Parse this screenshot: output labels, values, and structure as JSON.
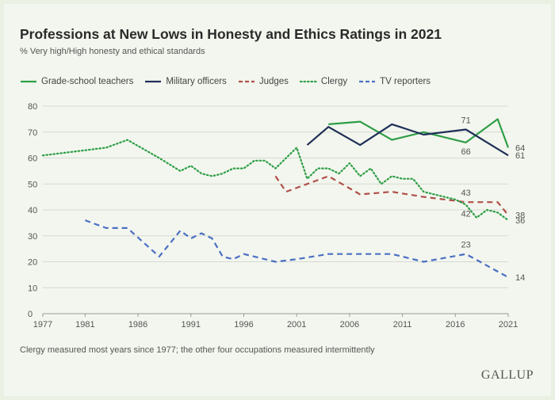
{
  "chart_data": {
    "type": "line",
    "title": "Professions at New Lows in Honesty and Ethics Ratings in 2021",
    "subtitle": "% Very high/High honesty and ethical standards",
    "footnote": "Clergy measured most years since 1977; the other four occupations measured intermittently",
    "source": "GALLUP",
    "xlim": [
      1977,
      2021
    ],
    "ylim": [
      0,
      80
    ],
    "x_ticks": [
      1977,
      1981,
      1986,
      1991,
      1996,
      2001,
      2006,
      2011,
      2016,
      2021
    ],
    "y_ticks": [
      0,
      10,
      20,
      30,
      40,
      50,
      60,
      70,
      80
    ],
    "grid": "horizontal",
    "legend_position": "top-left",
    "series": [
      {
        "name": "Grade-school teachers",
        "color": "#2e9e47",
        "style": "solid",
        "points": [
          [
            2004,
            73
          ],
          [
            2007,
            74
          ],
          [
            2010,
            67
          ],
          [
            2013,
            70
          ],
          [
            2017,
            66
          ],
          [
            2020,
            75
          ],
          [
            2021,
            64
          ]
        ],
        "point_labels": [
          {
            "x": 2017,
            "y": 66,
            "text": "66",
            "pos": "below"
          },
          {
            "x": 2021,
            "y": 64,
            "text": "64",
            "pos": "right"
          }
        ]
      },
      {
        "name": "Military officers",
        "color": "#1f2f57",
        "style": "solid",
        "points": [
          [
            2002,
            65
          ],
          [
            2004,
            72
          ],
          [
            2007,
            65
          ],
          [
            2010,
            73
          ],
          [
            2013,
            69
          ],
          [
            2017,
            71
          ],
          [
            2021,
            61
          ]
        ],
        "point_labels": [
          {
            "x": 2017,
            "y": 71,
            "text": "71",
            "pos": "above"
          },
          {
            "x": 2021,
            "y": 61,
            "text": "61",
            "pos": "right"
          }
        ]
      },
      {
        "name": "Judges",
        "color": "#b0504b",
        "style": "dashed",
        "points": [
          [
            1999,
            53
          ],
          [
            2000,
            47
          ],
          [
            2004,
            53
          ],
          [
            2007,
            46
          ],
          [
            2010,
            47
          ],
          [
            2013,
            45
          ],
          [
            2017,
            43
          ],
          [
            2020,
            43
          ],
          [
            2021,
            38
          ]
        ],
        "point_labels": [
          {
            "x": 2017,
            "y": 43,
            "text": "43",
            "pos": "above"
          },
          {
            "x": 2021,
            "y": 38,
            "text": "38",
            "pos": "right"
          }
        ]
      },
      {
        "name": "Clergy",
        "color": "#2e9e47",
        "style": "dotted",
        "points": [
          [
            1977,
            61
          ],
          [
            1981,
            63
          ],
          [
            1983,
            64
          ],
          [
            1985,
            67
          ],
          [
            1988,
            60
          ],
          [
            1990,
            55
          ],
          [
            1991,
            57
          ],
          [
            1992,
            54
          ],
          [
            1993,
            53
          ],
          [
            1994,
            54
          ],
          [
            1995,
            56
          ],
          [
            1996,
            56
          ],
          [
            1997,
            59
          ],
          [
            1998,
            59
          ],
          [
            1999,
            56
          ],
          [
            2000,
            60
          ],
          [
            2001,
            64
          ],
          [
            2002,
            52
          ],
          [
            2003,
            56
          ],
          [
            2004,
            56
          ],
          [
            2005,
            54
          ],
          [
            2006,
            58
          ],
          [
            2007,
            53
          ],
          [
            2008,
            56
          ],
          [
            2009,
            50
          ],
          [
            2010,
            53
          ],
          [
            2011,
            52
          ],
          [
            2012,
            52
          ],
          [
            2013,
            47
          ],
          [
            2014,
            46
          ],
          [
            2015,
            45
          ],
          [
            2016,
            44
          ],
          [
            2017,
            42
          ],
          [
            2018,
            37
          ],
          [
            2019,
            40
          ],
          [
            2020,
            39
          ],
          [
            2021,
            36
          ]
        ],
        "point_labels": [
          {
            "x": 2017,
            "y": 42,
            "text": "42",
            "pos": "below"
          },
          {
            "x": 2021,
            "y": 36,
            "text": "36",
            "pos": "right"
          }
        ]
      },
      {
        "name": "TV reporters",
        "color": "#4a6fc4",
        "style": "dashed",
        "points": [
          [
            1981,
            36
          ],
          [
            1983,
            33
          ],
          [
            1985,
            33
          ],
          [
            1988,
            22
          ],
          [
            1990,
            32
          ],
          [
            1991,
            29
          ],
          [
            1992,
            31
          ],
          [
            1993,
            29
          ],
          [
            1994,
            22
          ],
          [
            1995,
            21
          ],
          [
            1996,
            23
          ],
          [
            1999,
            20
          ],
          [
            2001,
            21
          ],
          [
            2004,
            23
          ],
          [
            2007,
            23
          ],
          [
            2010,
            23
          ],
          [
            2013,
            20
          ],
          [
            2017,
            23
          ],
          [
            2021,
            14
          ]
        ],
        "point_labels": [
          {
            "x": 2017,
            "y": 23,
            "text": "23",
            "pos": "above"
          },
          {
            "x": 2021,
            "y": 14,
            "text": "14",
            "pos": "right"
          }
        ]
      }
    ]
  }
}
